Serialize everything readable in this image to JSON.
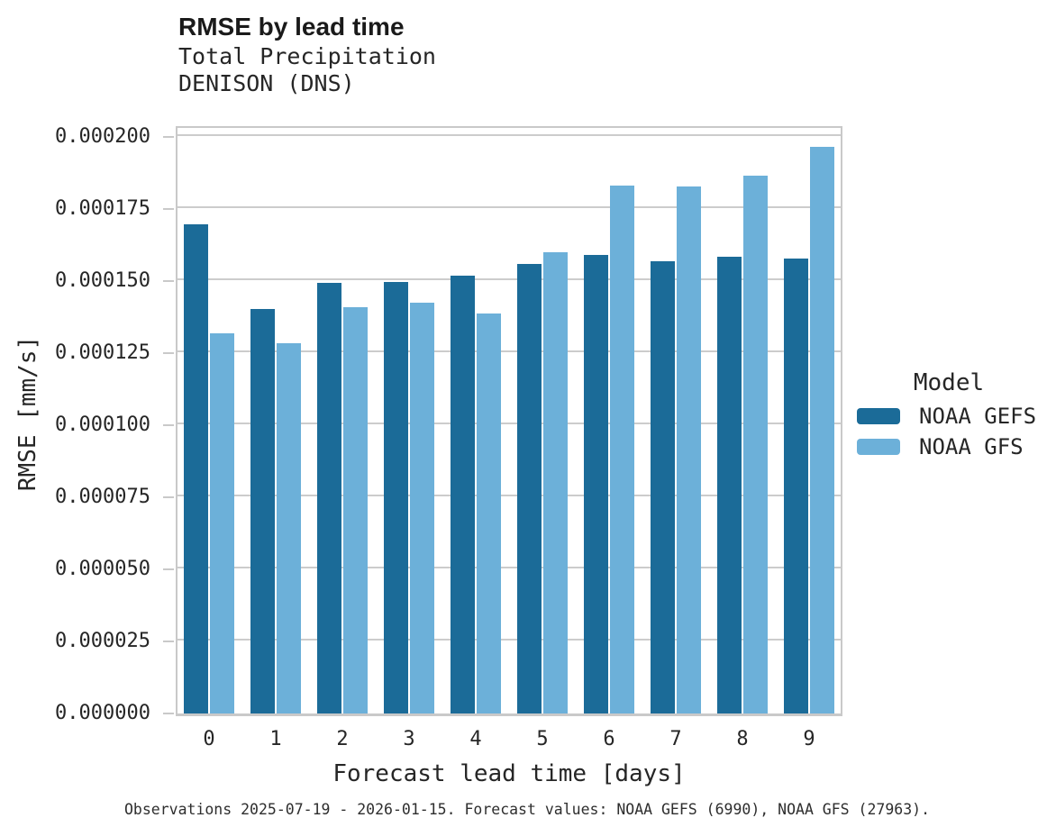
{
  "chart_data": {
    "type": "bar",
    "title": "RMSE by lead time",
    "subtitle_line1": "Total Precipitation",
    "subtitle_line2": "DENISON (DNS)",
    "xlabel": "Forecast lead time [days]",
    "ylabel": "RMSE [mm/s]",
    "legend_title": "Model",
    "legend_position": "right",
    "grid": true,
    "categories": [
      "0",
      "1",
      "2",
      "3",
      "4",
      "5",
      "6",
      "7",
      "8",
      "9"
    ],
    "ylim": [
      0,
      0.0002
    ],
    "yticks": [
      {
        "value": 0.0002,
        "label": "0.000200"
      },
      {
        "value": 0.000175,
        "label": "0.000175"
      },
      {
        "value": 0.00015,
        "label": "0.000150"
      },
      {
        "value": 0.000125,
        "label": "0.000125"
      },
      {
        "value": 0.0001,
        "label": "0.000100"
      },
      {
        "value": 7.5e-05,
        "label": "0.000075"
      },
      {
        "value": 5e-05,
        "label": "0.000050"
      },
      {
        "value": 2.5e-05,
        "label": "0.000025"
      },
      {
        "value": 0.0,
        "label": "0.000000"
      }
    ],
    "series": [
      {
        "name": "NOAA GEFS",
        "color": "#1b6b98",
        "values": [
          0.0001697,
          0.0001402,
          0.0001494,
          0.0001496,
          0.0001518,
          0.0001558,
          0.0001592,
          0.0001568,
          0.0001585,
          0.0001578
        ]
      },
      {
        "name": "NOAA GFS",
        "color": "#6cb0d9",
        "values": [
          0.0001319,
          0.0001283,
          0.000141,
          0.0001425,
          0.0001387,
          0.0001601,
          0.0001831,
          0.0001828,
          0.0001866,
          0.0001965
        ]
      }
    ],
    "caption": "Observations 2025-07-19 - 2026-01-15. Forecast values: NOAA GEFS (6990), NOAA GFS (27963)."
  },
  "colors": {
    "grid": "#cccccc",
    "axis_border": "#c9c9c9",
    "text": "#262626",
    "title_text": "#1a1a1a"
  }
}
